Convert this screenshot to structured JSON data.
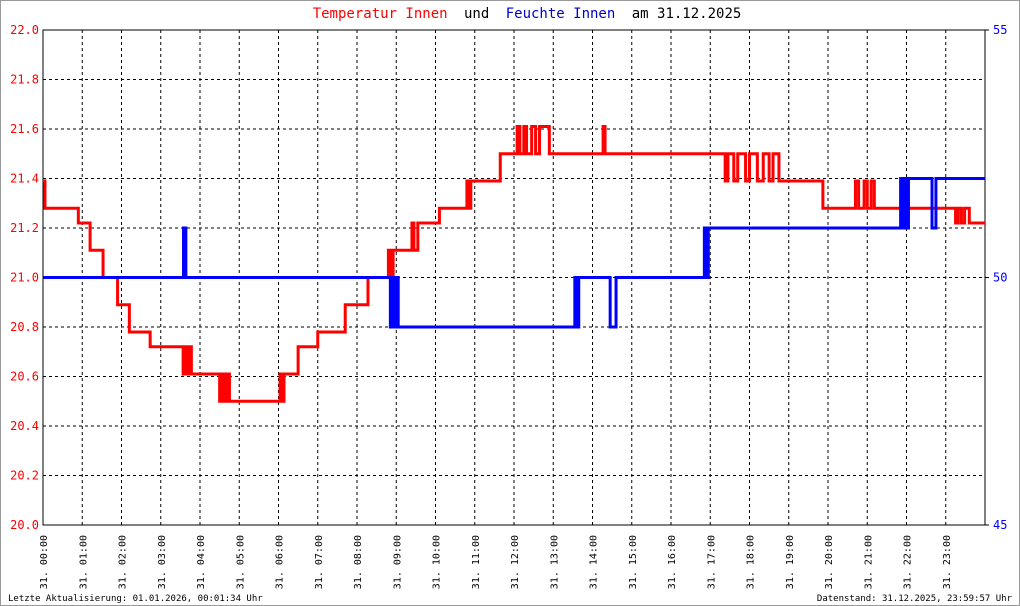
{
  "chart_data": {
    "type": "line",
    "title_parts": [
      "Temperatur Innen",
      "und",
      "Feuchte Innen",
      "am 31.12.2025"
    ],
    "title_colors": [
      "#ff0000",
      "#000000",
      "#0000cc",
      "#000000"
    ],
    "annotations": [
      "Letzte Aktualisierung: 01.01.2026, 00:01:34 Uhr",
      "Datenstand: 31.12.2025, 23:59:57 Uhr"
    ],
    "xlim": [
      0,
      24
    ],
    "xticks": [
      {
        "value": 0,
        "label": "31. 00:00"
      },
      {
        "value": 1,
        "label": "31. 01:00"
      },
      {
        "value": 2,
        "label": "31. 02:00"
      },
      {
        "value": 3,
        "label": "31. 03:00"
      },
      {
        "value": 4,
        "label": "31. 04:00"
      },
      {
        "value": 5,
        "label": "31. 05:00"
      },
      {
        "value": 6,
        "label": "31. 06:00"
      },
      {
        "value": 7,
        "label": "31. 07:00"
      },
      {
        "value": 8,
        "label": "31. 08:00"
      },
      {
        "value": 9,
        "label": "31. 09:00"
      },
      {
        "value": 10,
        "label": "31. 10:00"
      },
      {
        "value": 11,
        "label": "31. 11:00"
      },
      {
        "value": 12,
        "label": "31. 12:00"
      },
      {
        "value": 13,
        "label": "31. 13:00"
      },
      {
        "value": 14,
        "label": "31. 14:00"
      },
      {
        "value": 15,
        "label": "31. 15:00"
      },
      {
        "value": 16,
        "label": "31. 16:00"
      },
      {
        "value": 17,
        "label": "31. 17:00"
      },
      {
        "value": 18,
        "label": "31. 18:00"
      },
      {
        "value": 19,
        "label": "31. 19:00"
      },
      {
        "value": 20,
        "label": "31. 20:00"
      },
      {
        "value": 21,
        "label": "31. 21:00"
      },
      {
        "value": 22,
        "label": "31. 22:00"
      },
      {
        "value": 23,
        "label": "31. 23:00"
      }
    ],
    "ylim": [
      20,
      22
    ],
    "yticks": [
      {
        "value": 20,
        "label": "20.0"
      },
      {
        "value": 20.2,
        "label": "20.2"
      },
      {
        "value": 20.4,
        "label": "20.4"
      },
      {
        "value": 20.6,
        "label": "20.6"
      },
      {
        "value": 20.8,
        "label": "20.8"
      },
      {
        "value": 21,
        "label": "21.0"
      },
      {
        "value": 21.2,
        "label": "21.2"
      },
      {
        "value": 21.4,
        "label": "21.4"
      },
      {
        "value": 21.6,
        "label": "21.6"
      },
      {
        "value": 21.8,
        "label": "21.8"
      },
      {
        "value": 22,
        "label": "22.0"
      }
    ],
    "y2lim": [
      45,
      55
    ],
    "y2ticks": [
      45,
      50,
      55
    ],
    "grid": true,
    "series": [
      {
        "name": "Temperatur Innen",
        "color": "#ff0000",
        "x": [
          0,
          0.05,
          0.9,
          1.2,
          1.53,
          1.9,
          2.2,
          2.73,
          3.57,
          3.62,
          3.68,
          3.72,
          3.78,
          4.5,
          4.55,
          4.62,
          4.68,
          4.75,
          6.04,
          6.08,
          6.14,
          6.5,
          7.0,
          7.7,
          8.28,
          8.8,
          8.85,
          8.92,
          9.4,
          9.45,
          9.55,
          10.1,
          10.8,
          10.85,
          10.9,
          11.65,
          12.08,
          12.15,
          12.25,
          12.32,
          12.45,
          12.55,
          12.65,
          12.9,
          14.27,
          14.32,
          17.38,
          17.45,
          17.6,
          17.7,
          17.9,
          18.0,
          18.2,
          18.35,
          18.5,
          18.6,
          18.75,
          19.87,
          20.7,
          20.78,
          20.92,
          21.0,
          21.1,
          21.18,
          23.25,
          23.32,
          23.4,
          23.48,
          23.6
        ],
        "values": [
          21.39,
          21.28,
          21.22,
          21.11,
          21.0,
          20.89,
          20.78,
          20.72,
          20.61,
          20.72,
          20.61,
          20.72,
          20.61,
          20.5,
          20.61,
          20.5,
          20.61,
          20.5,
          20.61,
          20.5,
          20.61,
          20.72,
          20.78,
          20.89,
          21.0,
          21.11,
          21.0,
          21.11,
          21.22,
          21.11,
          21.22,
          21.28,
          21.39,
          21.28,
          21.39,
          21.5,
          21.61,
          21.5,
          21.61,
          21.5,
          21.61,
          21.5,
          21.61,
          21.5,
          21.61,
          21.5,
          21.39,
          21.5,
          21.39,
          21.5,
          21.39,
          21.5,
          21.39,
          21.5,
          21.39,
          21.5,
          21.39,
          21.28,
          21.39,
          21.28,
          21.39,
          21.28,
          21.39,
          21.28,
          21.22,
          21.28,
          21.22,
          21.28,
          21.22
        ]
      },
      {
        "name": "Feuchte Innen",
        "color": "#0000ff",
        "axis": "y2",
        "x": [
          0,
          3.58,
          3.64,
          8.85,
          8.9,
          8.95,
          9.0,
          9.05,
          13.55,
          13.6,
          13.65,
          14.45,
          14.6,
          16.85,
          16.9,
          16.95,
          21.85,
          21.9,
          21.95,
          22.0,
          22.05,
          22.65,
          22.75
        ],
        "values": [
          50,
          51,
          50,
          49,
          50,
          49,
          50,
          49,
          50,
          49,
          50,
          49,
          50,
          51,
          50,
          51,
          52,
          51,
          52,
          51,
          52,
          51,
          52
        ]
      }
    ]
  }
}
